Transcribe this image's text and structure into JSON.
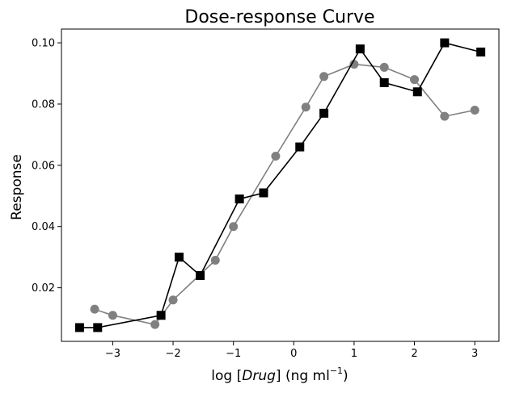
{
  "chart_data": {
    "type": "line",
    "title": "Dose-response Curve",
    "xlabel_parts": {
      "pre": "log [",
      "italic": "Drug",
      "post": "] (ng ml",
      "sup": "−1",
      "close": ")"
    },
    "ylabel": "Response",
    "xlim": [
      -3.85,
      3.4
    ],
    "ylim": [
      0.0025,
      0.1045
    ],
    "xticks": [
      -3,
      -2,
      -1,
      0,
      1,
      2,
      3
    ],
    "xtick_labels": [
      "−3",
      "−2",
      "−1",
      "0",
      "1",
      "2",
      "3"
    ],
    "yticks": [
      0.02,
      0.04,
      0.06,
      0.08,
      0.1
    ],
    "ytick_labels": [
      "0.02",
      "0.04",
      "0.06",
      "0.08",
      "0.10"
    ],
    "grid": false,
    "series": [
      {
        "marker": "circle",
        "color": "#808080",
        "x": [
          -3.3,
          -3.0,
          -2.3,
          -2.0,
          -1.3,
          -1.0,
          -0.3,
          0.2,
          0.5,
          1.0,
          1.5,
          2.0,
          2.5,
          3.0
        ],
        "y": [
          0.013,
          0.011,
          0.008,
          0.016,
          0.029,
          0.04,
          0.063,
          0.079,
          0.089,
          0.093,
          0.092,
          0.088,
          0.076,
          0.078
        ]
      },
      {
        "marker": "square",
        "color": "#000000",
        "x": [
          -3.55,
          -3.25,
          -2.2,
          -1.9,
          -1.55,
          -0.9,
          -0.5,
          0.1,
          0.5,
          1.1,
          1.5,
          2.05,
          2.5,
          3.1
        ],
        "y": [
          0.007,
          0.007,
          0.011,
          0.03,
          0.024,
          0.049,
          0.051,
          0.066,
          0.077,
          0.098,
          0.087,
          0.084,
          0.1,
          0.097
        ]
      }
    ]
  }
}
